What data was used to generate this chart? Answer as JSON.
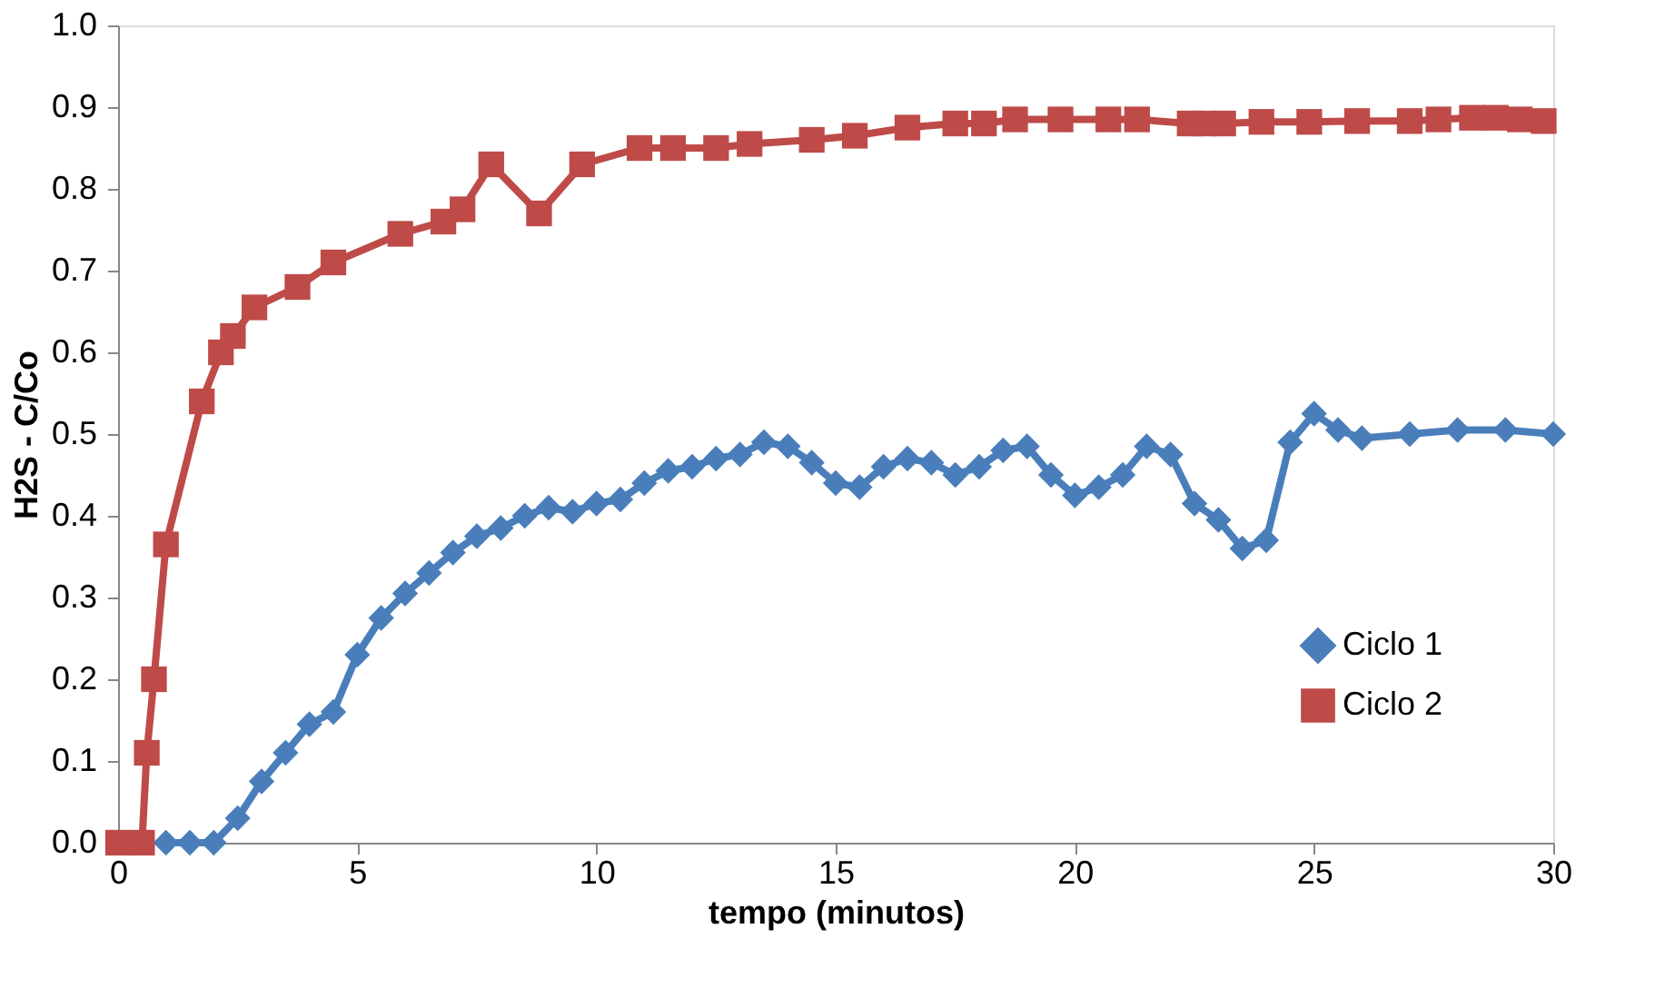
{
  "chart_data": {
    "type": "line",
    "xlabel": "tempo (minutos)",
    "ylabel": "H2S - C/Co",
    "xlim": [
      0,
      30
    ],
    "xticks": [
      0,
      5,
      10,
      15,
      20,
      25,
      30
    ],
    "ylim": [
      0,
      1
    ],
    "yticks": [
      {
        "value": 0,
        "label": "0.0"
      },
      {
        "value": 0.1,
        "label": "0.1"
      },
      {
        "value": 0.2,
        "label": "0.2"
      },
      {
        "value": 0.3,
        "label": "0.3"
      },
      {
        "value": 0.4,
        "label": "0.4"
      },
      {
        "value": 0.5,
        "label": "0.5"
      },
      {
        "value": 0.6,
        "label": "0.6"
      },
      {
        "value": 0.7,
        "label": "0.7"
      },
      {
        "value": 0.8,
        "label": "0.8"
      },
      {
        "value": 0.9,
        "label": "0.9"
      },
      {
        "value": 1,
        "label": "1.0"
      }
    ],
    "grid": false,
    "legend": "bottom right",
    "line_style": "solid",
    "series": [
      {
        "name": "Ciclo 1",
        "color": "#4a7ebb",
        "marker": "diamond",
        "x": [
          1,
          1.5,
          2,
          2.5,
          3,
          3.5,
          4,
          4.5,
          5,
          5.5,
          6,
          6.5,
          7,
          7.5,
          8,
          8.5,
          9,
          9.5,
          10,
          10.5,
          11,
          11.5,
          12,
          12.5,
          13,
          13.5,
          14,
          14.5,
          15,
          15.5,
          16,
          16.5,
          17,
          17.5,
          18,
          18.5,
          19,
          19.5,
          20,
          20.5,
          21,
          21.5,
          22,
          22.5,
          23,
          23.5,
          24,
          24.5,
          25,
          25.5,
          26,
          27,
          28,
          29,
          30
        ],
        "values": [
          0,
          0,
          0,
          0.03,
          0.075,
          0.11,
          0.145,
          0.16,
          0.23,
          0.275,
          0.305,
          0.33,
          0.355,
          0.375,
          0.385,
          0.4,
          0.41,
          0.405,
          0.415,
          0.42,
          0.44,
          0.455,
          0.46,
          0.47,
          0.475,
          0.49,
          0.485,
          0.465,
          0.44,
          0.435,
          0.46,
          0.47,
          0.465,
          0.45,
          0.46,
          0.48,
          0.485,
          0.45,
          0.425,
          0.435,
          0.45,
          0.485,
          0.475,
          0.415,
          0.395,
          0.36,
          0.37,
          0.49,
          0.525,
          0.505,
          0.495,
          0.5,
          0.505,
          0.505,
          0.5
        ]
      },
      {
        "name": "Ciclo 2",
        "color": "#be4b48",
        "marker": "square",
        "x": [
          0,
          0.5,
          0.6,
          0.75,
          1,
          1.75,
          2.15,
          2.4,
          2.85,
          3.75,
          4.5,
          5.9,
          6.8,
          7.2,
          7.8,
          8.8,
          9.7,
          10.9,
          11.6,
          12.5,
          13.2,
          14.5,
          15.4,
          16.5,
          17.5,
          18.1,
          18.75,
          19.7,
          20.7,
          21.3,
          22.4,
          22.7,
          23.1,
          23.9,
          24.9,
          25.9,
          27,
          27.6,
          28.3,
          28.8,
          29.3,
          29.8
        ],
        "values": [
          0,
          0,
          0.11,
          0.2,
          0.365,
          0.54,
          0.6,
          0.62,
          0.655,
          0.68,
          0.71,
          0.745,
          0.76,
          0.775,
          0.83,
          0.77,
          0.83,
          0.85,
          0.85,
          0.85,
          0.855,
          0.86,
          0.865,
          0.875,
          0.88,
          0.88,
          0.885,
          0.885,
          0.885,
          0.885,
          0.88,
          0.88,
          0.88,
          0.882,
          0.882,
          0.883,
          0.883,
          0.885,
          0.887,
          0.887,
          0.885,
          0.883
        ]
      }
    ]
  }
}
